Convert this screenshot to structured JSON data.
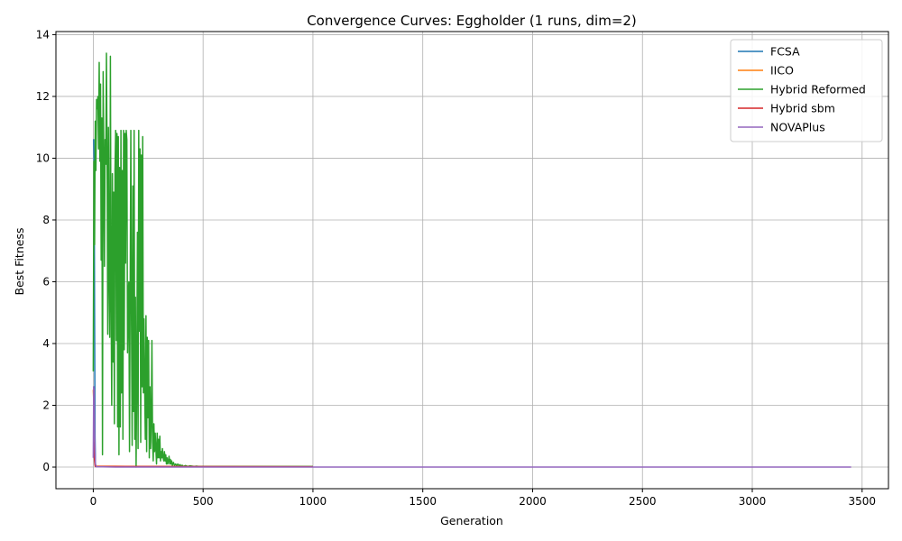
{
  "chart_data": {
    "type": "line",
    "title": "Convergence Curves: Eggholder (1 runs, dim=2)",
    "xlabel": "Generation",
    "ylabel": "Best Fitness",
    "xlim": [
      -170,
      3620
    ],
    "ylim": [
      -0.7,
      14.1
    ],
    "xticks": [
      0,
      500,
      1000,
      1500,
      2000,
      2500,
      3000,
      3500
    ],
    "yticks": [
      0,
      2,
      4,
      6,
      8,
      10,
      12,
      14
    ],
    "xtick_labels": [
      "0",
      "500",
      "1000",
      "1500",
      "2000",
      "2500",
      "3000",
      "3500"
    ],
    "ytick_labels": [
      "0",
      "2",
      "4",
      "6",
      "8",
      "10",
      "12",
      "14"
    ],
    "grid": true,
    "legend_position": "top-right",
    "series": [
      {
        "name": "FCSA",
        "color": "#1f77b4",
        "x": [
          0,
          2,
          4,
          6,
          8,
          10,
          1000
        ],
        "y": [
          10.6,
          10.6,
          9.8,
          5.0,
          1.0,
          0.02,
          0.01
        ]
      },
      {
        "name": "IICO",
        "color": "#ff7f0e",
        "x": [
          0,
          3,
          6,
          10,
          200,
          600,
          1000
        ],
        "y": [
          2.5,
          2.0,
          0.5,
          0.03,
          0.02,
          0.02,
          0.01
        ]
      },
      {
        "name": "Hybrid Reformed",
        "color": "#2ca02c",
        "x": [
          0,
          3,
          6,
          9,
          12,
          15,
          18,
          21,
          24,
          27,
          30,
          33,
          36,
          39,
          42,
          45,
          48,
          51,
          54,
          57,
          60,
          63,
          66,
          69,
          72,
          75,
          78,
          81,
          84,
          87,
          90,
          93,
          96,
          99,
          102,
          105,
          108,
          111,
          114,
          117,
          120,
          123,
          126,
          129,
          132,
          135,
          138,
          141,
          144,
          147,
          150,
          153,
          156,
          159,
          162,
          165,
          168,
          171,
          174,
          177,
          180,
          183,
          186,
          189,
          192,
          195,
          198,
          201,
          204,
          207,
          210,
          213,
          216,
          219,
          222,
          225,
          228,
          231,
          234,
          237,
          240,
          243,
          246,
          249,
          252,
          255,
          258,
          261,
          264,
          267,
          270,
          273,
          276,
          279,
          282,
          285,
          288,
          291,
          294,
          297,
          300,
          303,
          306,
          309,
          312,
          315,
          318,
          321,
          324,
          327,
          330,
          333,
          336,
          339,
          342,
          345,
          348,
          351,
          354,
          357,
          360,
          365,
          370,
          375,
          380,
          385,
          390,
          395,
          400,
          405,
          410,
          420,
          430,
          440,
          450,
          460,
          470,
          480,
          490,
          500,
          1000
        ],
        "y": [
          3.1,
          9.9,
          7.2,
          11.2,
          9.6,
          11.9,
          11.6,
          12.0,
          10.3,
          13.1,
          9.9,
          12.4,
          6.7,
          11.3,
          0.4,
          12.8,
          10.0,
          6.5,
          10.6,
          9.8,
          13.4,
          9.9,
          4.3,
          11.0,
          6.2,
          4.2,
          13.3,
          5.7,
          2.0,
          9.5,
          3.4,
          8.9,
          1.4,
          9.6,
          10.9,
          4.1,
          10.8,
          1.3,
          10.7,
          0.4,
          9.7,
          1.3,
          10.9,
          2.4,
          9.6,
          0.9,
          10.9,
          3.8,
          10.8,
          6.6,
          10.9,
          10.6,
          3.7,
          5.5,
          6.0,
          0.5,
          5.6,
          10.9,
          4.6,
          0.7,
          9.1,
          1.8,
          10.9,
          0.9,
          5.5,
          0.0,
          2.9,
          7.6,
          0.6,
          10.9,
          4.4,
          10.3,
          0.8,
          10.1,
          2.6,
          10.7,
          2.4,
          4.8,
          2.6,
          0.9,
          4.9,
          0.5,
          4.2,
          1.6,
          4.1,
          0.3,
          2.6,
          0.6,
          1.5,
          4.1,
          0.8,
          0.2,
          1.4,
          0.5,
          1.1,
          0.6,
          0.1,
          1.1,
          0.3,
          0.9,
          0.3,
          1.0,
          0.2,
          0.5,
          0.3,
          0.6,
          0.3,
          0.2,
          0.5,
          0.2,
          0.4,
          0.1,
          0.3,
          0.1,
          0.2,
          0.35,
          0.1,
          0.25,
          0.1,
          0.2,
          0.05,
          0.15,
          0.05,
          0.1,
          0.05,
          0.1,
          0.04,
          0.08,
          0.03,
          0.06,
          0.02,
          0.05,
          0.02,
          0.04,
          0.03,
          0.02,
          0.03,
          0.02,
          0.02,
          0.02,
          0.02
        ]
      },
      {
        "name": "Hybrid sbm",
        "color": "#d62728",
        "x": [
          0,
          2,
          4,
          6,
          8,
          10,
          1000
        ],
        "y": [
          0.8,
          0.8,
          0.4,
          0.2,
          0.05,
          0.02,
          0.01
        ]
      },
      {
        "name": "NOVAPlus",
        "color": "#9467bd",
        "x": [
          0,
          2,
          4,
          6,
          8,
          10,
          14,
          100,
          500,
          1000,
          2000,
          3000,
          3450
        ],
        "y": [
          0.3,
          2.6,
          2.5,
          1.2,
          0.5,
          0.1,
          0.01,
          0.0,
          0.0,
          0.0,
          0.0,
          0.0,
          0.0
        ]
      }
    ]
  }
}
